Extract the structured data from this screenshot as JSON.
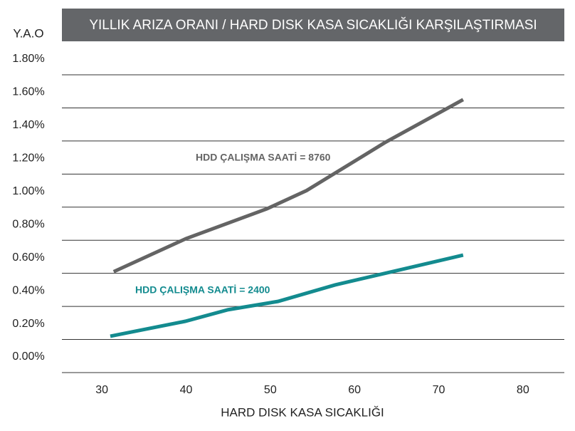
{
  "chart_data": {
    "type": "line",
    "title": "YILLIK ARIZA ORANI / HARD DISK KASA SICAKLIĞI KARŞILAŞTIRMASI",
    "y_label": "Y.A.O",
    "x_label": "HARD DISK KASA SICAKLIĞI",
    "xlim": [
      25,
      85
    ],
    "xticks": [
      30,
      40,
      50,
      60,
      70,
      80
    ],
    "ylim": [
      0,
      1.8
    ],
    "yticks": [
      {
        "value": 0,
        "label": "0.00%"
      },
      {
        "value": 0.2,
        "label": "0.20%"
      },
      {
        "value": 0.4,
        "label": "0.40%"
      },
      {
        "value": 0.6,
        "label": "0.60%"
      },
      {
        "value": 0.8,
        "label": "0.80%"
      },
      {
        "value": 1.0,
        "label": "1.00%"
      },
      {
        "value": 1.2,
        "label": "1.20%"
      },
      {
        "value": 1.4,
        "label": "1.40%"
      },
      {
        "value": 1.6,
        "label": "1.60%"
      },
      {
        "value": 1.8,
        "label": "1.80%"
      }
    ],
    "grid": true,
    "series": [
      {
        "name": "HDD ÇALIŞMA SAATİ  = 8760",
        "color": "#646464",
        "x": [
          31.4,
          40,
          49.6,
          54.3,
          63.6,
          72.9
        ],
        "values": [
          0.61,
          0.81,
          0.99,
          1.1,
          1.39,
          1.65
        ]
      },
      {
        "name": "HDD ÇALIŞMA SAATİ = 2400",
        "color": "#138b8f",
        "x": [
          31,
          39.9,
          45,
          50.9,
          57.7,
          65.3,
          72.9
        ],
        "values": [
          0.22,
          0.31,
          0.38,
          0.43,
          0.53,
          0.62,
          0.71
        ]
      }
    ]
  }
}
